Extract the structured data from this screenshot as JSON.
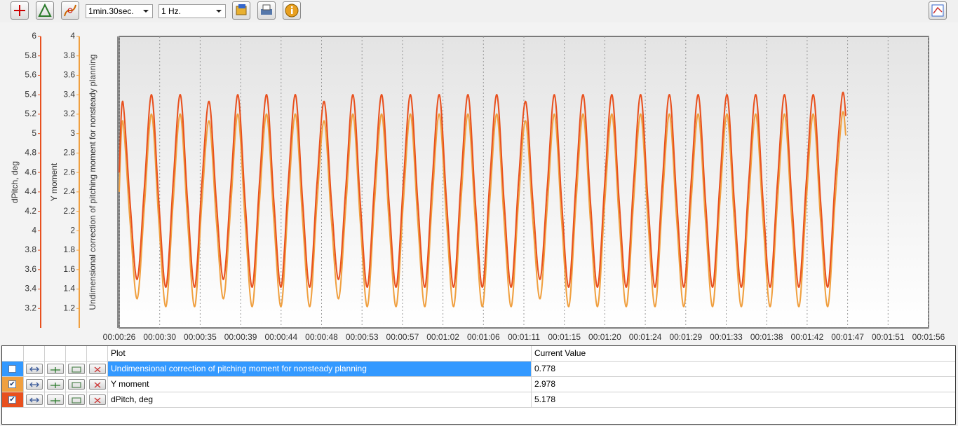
{
  "toolbar": {
    "interval": "1min.30sec.",
    "rate": "1 Hz."
  },
  "chart_data": {
    "type": "line",
    "y_axes": [
      {
        "label": "dPitch, deg",
        "color": "#e8501e",
        "ylim": [
          3,
          6
        ],
        "yticks": [
          3.2,
          3.4,
          3.6,
          3.8,
          4,
          4.2,
          4.4,
          4.6,
          4.8,
          5,
          5.2,
          5.4,
          5.6,
          5.8,
          6
        ]
      },
      {
        "label": "Y moment",
        "color": "#f0a040",
        "ylim": [
          1,
          4
        ],
        "yticks": [
          1.2,
          1.4,
          1.6,
          1.8,
          2,
          2.2,
          2.4,
          2.6,
          2.8,
          3,
          3.2,
          3.4,
          3.6,
          3.8,
          4
        ]
      },
      {
        "label": "Undimensional correction of pitching moment for nonsteady planning",
        "color": "#888888"
      }
    ],
    "xlim": [
      26,
      116
    ],
    "xticks": [
      {
        "value": 26,
        "label": "00:00:26"
      },
      {
        "value": 30.5,
        "label": "00:00:30"
      },
      {
        "value": 35,
        "label": "00:00:35"
      },
      {
        "value": 39.5,
        "label": "00:00:39"
      },
      {
        "value": 44,
        "label": "00:00:44"
      },
      {
        "value": 48.5,
        "label": "00:00:48"
      },
      {
        "value": 53,
        "label": "00:00:53"
      },
      {
        "value": 57.5,
        "label": "00:00:57"
      },
      {
        "value": 62,
        "label": "00:01:02"
      },
      {
        "value": 66.5,
        "label": "00:01:06"
      },
      {
        "value": 71,
        "label": "00:01:11"
      },
      {
        "value": 75.5,
        "label": "00:01:15"
      },
      {
        "value": 80,
        "label": "00:01:20"
      },
      {
        "value": 84.5,
        "label": "00:01:24"
      },
      {
        "value": 89,
        "label": "00:01:29"
      },
      {
        "value": 93.5,
        "label": "00:01:33"
      },
      {
        "value": 98,
        "label": "00:01:38"
      },
      {
        "value": 102.5,
        "label": "00:01:42"
      },
      {
        "value": 107,
        "label": "00:01:47"
      },
      {
        "value": 111.5,
        "label": "00:01:51"
      },
      {
        "value": 116,
        "label": "00:01:56"
      }
    ],
    "grid": true,
    "x": [
      26,
      26.4,
      27.2,
      28,
      28.8,
      29.6,
      30.4,
      31.2,
      32,
      32.8,
      33.6,
      34.4,
      35.2,
      36,
      36.8,
      37.6,
      38.4,
      39.2,
      40,
      40.8,
      41.6,
      42.4,
      43.2,
      44,
      44.8,
      45.6,
      46.4,
      47.2,
      48,
      48.8,
      49.6,
      50.4,
      51.2,
      52,
      52.8,
      53.6,
      54.4,
      55.2,
      56,
      56.8,
      57.6,
      58.4,
      59.2,
      60,
      60.8,
      61.6,
      62.4,
      63.2,
      64,
      64.8,
      65.6,
      66.4,
      67.2,
      68,
      68.8,
      69.6,
      70.4,
      71.2,
      72,
      72.8,
      73.6,
      74.4,
      75.2,
      76,
      76.8,
      77.6,
      78.4,
      79.2,
      80,
      80.8,
      81.6,
      82.4,
      83.2,
      84,
      84.8,
      85.6,
      86.4,
      87.2,
      88,
      88.8,
      89.6,
      90.4,
      91.2,
      92,
      92.8,
      93.6,
      94.4,
      95.2,
      96,
      96.8,
      97.6,
      98.4,
      99.2,
      100,
      100.8,
      101.6,
      102.4,
      103.2,
      104,
      104.8,
      105.6,
      106.4,
      106.8
    ],
    "series": [
      {
        "name": "dPitch, deg",
        "color": "#e8501e",
        "axis": 0,
        "values": [
          4.6,
          5.33,
          4.3,
          3.5,
          4.45,
          5.4,
          4.3,
          3.42,
          4.5,
          5.4,
          4.3,
          3.42,
          4.5,
          5.33,
          4.3,
          3.5,
          4.45,
          5.4,
          4.3,
          3.42,
          4.5,
          5.4,
          4.3,
          3.42,
          4.5,
          5.4,
          4.3,
          3.42,
          4.5,
          5.33,
          4.3,
          3.5,
          4.45,
          5.4,
          4.3,
          3.42,
          4.5,
          5.4,
          4.3,
          3.42,
          4.5,
          5.4,
          4.3,
          3.42,
          4.5,
          5.4,
          4.3,
          3.42,
          4.5,
          5.4,
          4.3,
          3.42,
          4.5,
          5.4,
          4.3,
          3.42,
          4.5,
          5.33,
          4.3,
          3.5,
          4.45,
          5.4,
          4.3,
          3.42,
          4.5,
          5.4,
          4.3,
          3.42,
          4.5,
          5.4,
          4.3,
          3.42,
          4.5,
          5.4,
          4.3,
          3.42,
          4.5,
          5.4,
          4.3,
          3.42,
          4.5,
          5.4,
          4.3,
          3.42,
          4.5,
          5.4,
          4.3,
          3.42,
          4.5,
          5.4,
          4.3,
          3.42,
          4.5,
          5.4,
          4.3,
          3.42,
          4.5,
          5.4,
          4.3,
          3.42,
          4.5,
          5.4,
          5.18
        ]
      },
      {
        "name": "Y moment",
        "color": "#f0a040",
        "axis": 1,
        "values": [
          2.4,
          3.13,
          2.1,
          1.3,
          2.25,
          3.2,
          2.1,
          1.22,
          2.3,
          3.2,
          2.1,
          1.22,
          2.3,
          3.13,
          2.1,
          1.3,
          2.25,
          3.2,
          2.1,
          1.22,
          2.3,
          3.2,
          2.1,
          1.22,
          2.3,
          3.2,
          2.1,
          1.22,
          2.3,
          3.13,
          2.1,
          1.3,
          2.25,
          3.2,
          2.1,
          1.22,
          2.3,
          3.2,
          2.1,
          1.22,
          2.3,
          3.2,
          2.1,
          1.22,
          2.3,
          3.2,
          2.1,
          1.22,
          2.3,
          3.2,
          2.1,
          1.22,
          2.3,
          3.2,
          2.1,
          1.22,
          2.3,
          3.13,
          2.1,
          1.3,
          2.25,
          3.2,
          2.1,
          1.22,
          2.3,
          3.2,
          2.1,
          1.22,
          2.3,
          3.2,
          2.1,
          1.22,
          2.3,
          3.2,
          2.1,
          1.22,
          2.3,
          3.2,
          2.1,
          1.22,
          2.3,
          3.2,
          2.1,
          1.22,
          2.3,
          3.2,
          2.1,
          1.22,
          2.3,
          3.2,
          2.1,
          1.22,
          2.3,
          3.2,
          2.1,
          1.22,
          2.3,
          3.2,
          2.1,
          1.22,
          2.3,
          3.2,
          2.98
        ]
      }
    ]
  },
  "table": {
    "columns": [
      "Plot",
      "Current Value"
    ],
    "rows": [
      {
        "plot": "Undimensional correction of pitching moment for nonsteady planning",
        "value": 0.778,
        "color": "#3399ff",
        "checked": false
      },
      {
        "plot": "Y moment",
        "value": 2.978,
        "color": "#f0a040",
        "checked": true
      },
      {
        "plot": "dPitch, deg",
        "value": 5.178,
        "color": "#e8501e",
        "checked": true
      }
    ]
  }
}
